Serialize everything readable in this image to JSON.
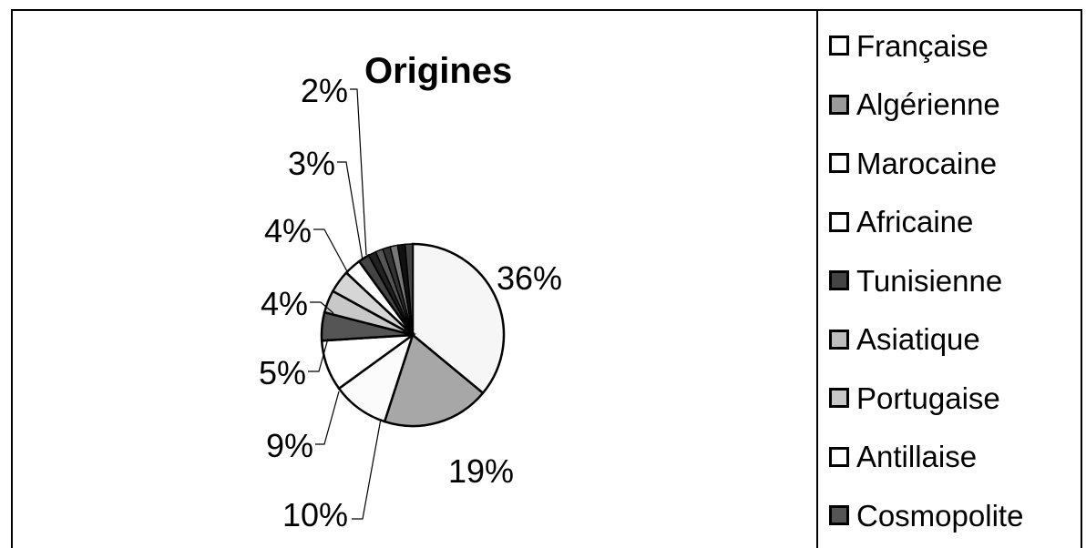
{
  "chart_data": {
    "type": "pie",
    "title": "Origines",
    "categories": [
      "Française",
      "Algérienne",
      "Marocaine",
      "Africaine",
      "Tunisienne",
      "Asiatique",
      "Portugaise",
      "Antillaise",
      "Cosmopolite"
    ],
    "data_labels": [
      "36%",
      "19%",
      "10%",
      "9%",
      "5%",
      "4%",
      "4%",
      "3%",
      "2%"
    ],
    "values": [
      36,
      19,
      10,
      9,
      5,
      4,
      4,
      3,
      2
    ],
    "legend_position": "right",
    "colors": [
      "#f6f6f6",
      "#a7a7a7",
      "#fbfbfb",
      "#ffffff",
      "#555555",
      "#c8c8c8",
      "#d6d6d6",
      "#ffffff",
      "#444444"
    ]
  }
}
